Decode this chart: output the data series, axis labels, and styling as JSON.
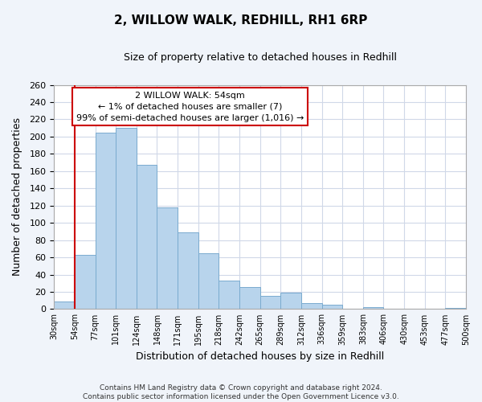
{
  "title": "2, WILLOW WALK, REDHILL, RH1 6RP",
  "subtitle": "Size of property relative to detached houses in Redhill",
  "xlabel": "Distribution of detached houses by size in Redhill",
  "ylabel": "Number of detached properties",
  "bin_edges": [
    "30sqm",
    "54sqm",
    "77sqm",
    "101sqm",
    "124sqm",
    "148sqm",
    "171sqm",
    "195sqm",
    "218sqm",
    "242sqm",
    "265sqm",
    "289sqm",
    "312sqm",
    "336sqm",
    "359sqm",
    "383sqm",
    "406sqm",
    "430sqm",
    "453sqm",
    "477sqm",
    "500sqm"
  ],
  "bar_values": [
    9,
    63,
    205,
    210,
    167,
    118,
    89,
    65,
    33,
    26,
    15,
    19,
    7,
    5,
    0,
    2,
    0,
    0,
    0,
    1
  ],
  "bar_color": "#b8d4ec",
  "bar_edge_color": "#7aabcf",
  "vline_color": "#cc0000",
  "annotation_lines": [
    "2 WILLOW WALK: 54sqm",
    "← 1% of detached houses are smaller (7)",
    "99% of semi-detached houses are larger (1,016) →"
  ],
  "annotation_box_color": "#ffffff",
  "annotation_box_edge": "#cc0000",
  "ylim": [
    0,
    260
  ],
  "yticks": [
    0,
    20,
    40,
    60,
    80,
    100,
    120,
    140,
    160,
    180,
    200,
    220,
    240,
    260
  ],
  "footer_lines": [
    "Contains HM Land Registry data © Crown copyright and database right 2024.",
    "Contains public sector information licensed under the Open Government Licence v3.0."
  ],
  "grid_color": "#d0d8e8",
  "background_color": "#ffffff",
  "fig_background_color": "#f0f4fa"
}
